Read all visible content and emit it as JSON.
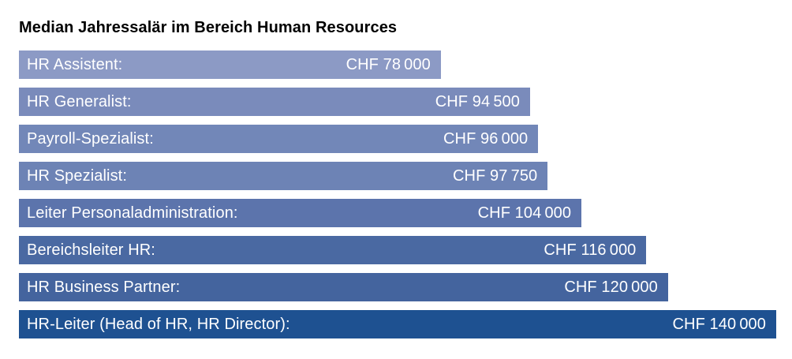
{
  "chart_data": {
    "type": "bar",
    "orientation": "horizontal",
    "title": "Median Jahressalär im Bereich Human Resources",
    "unit": "CHF",
    "xlabel": "",
    "ylabel": "",
    "grid": false,
    "legend": false,
    "value_labels_inside_bars": true,
    "max_value": 140000,
    "categories": [
      "HR Assistent:",
      "HR Generalist:",
      "Payroll-Spezialist:",
      "HR Spezialist:",
      "Leiter Personaladministration:",
      "Bereichsleiter HR:",
      "HR Business Partner:",
      "HR-Leiter (Head of HR, HR Director):"
    ],
    "values": [
      78000,
      94500,
      96000,
      97750,
      104000,
      116000,
      120000,
      140000
    ],
    "items": [
      {
        "label": "HR Assistent:",
        "value": 78000,
        "display": "CHF 78 000",
        "color": "#8C9AC5"
      },
      {
        "label": "HR Generalist:",
        "value": 94500,
        "display": "CHF 94 500",
        "color": "#7A8BBB"
      },
      {
        "label": "Payroll-Spezialist:",
        "value": 96000,
        "display": "CHF 96 000",
        "color": "#7287B8"
      },
      {
        "label": "HR Spezialist:",
        "value": 97750,
        "display": "CHF 97 750",
        "color": "#6D83B5"
      },
      {
        "label": "Leiter Personaladministration:",
        "value": 104000,
        "display": "CHF 104 000",
        "color": "#5C74AC"
      },
      {
        "label": "Bereichsleiter HR:",
        "value": 116000,
        "display": "CHF 116 000",
        "color": "#4A69A2"
      },
      {
        "label": "HR Business Partner:",
        "value": 120000,
        "display": "CHF 120 000",
        "color": "#44649E"
      },
      {
        "label": "HR-Leiter (Head of HR, HR Director):",
        "value": 140000,
        "display": "CHF 140 000",
        "color": "#1E5191"
      }
    ]
  }
}
